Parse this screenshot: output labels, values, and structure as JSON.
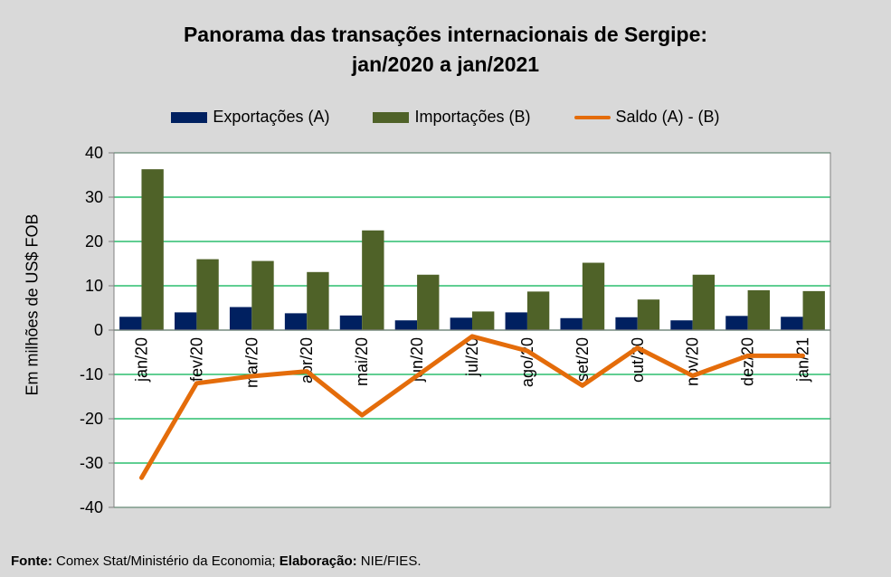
{
  "chart_data": {
    "type": "bar",
    "title_line1": "Panorama  das transações internacionais de Sergipe:",
    "title_line2": "jan/2020 a jan/2021",
    "ylabel": "Em milhões de US$ FOB",
    "ylim": [
      -40,
      40
    ],
    "yticks": [
      40,
      30,
      20,
      10,
      0,
      -10,
      -20,
      -30,
      -40
    ],
    "categories": [
      "jan/20",
      "fev/20",
      "mar/20",
      "abr/20",
      "mai/20",
      "jun/20",
      "jul/20",
      "ago/20",
      "set/20",
      "out/20",
      "nov/20",
      "dez/20",
      "jan/21"
    ],
    "series": [
      {
        "name": "Exportações (A)",
        "kind": "bar",
        "color": "#002060",
        "values": [
          3.0,
          4.0,
          5.2,
          3.8,
          3.3,
          2.2,
          2.8,
          4.0,
          2.7,
          2.9,
          2.2,
          3.2,
          3.0
        ]
      },
      {
        "name": "Importações (B)",
        "kind": "bar",
        "color": "#4f6228",
        "values": [
          36.3,
          16.0,
          15.6,
          13.1,
          22.5,
          12.5,
          4.2,
          8.7,
          15.2,
          6.9,
          12.5,
          9.0,
          8.8
        ]
      },
      {
        "name": "Saldo (A) - (B)",
        "kind": "line",
        "color": "#e46c0a",
        "values": [
          -33.3,
          -12.0,
          -10.4,
          -9.3,
          -19.2,
          -10.3,
          -1.4,
          -4.7,
          -12.5,
          -4.0,
          -10.3,
          -5.8,
          -5.8
        ]
      }
    ],
    "grid": true,
    "legend_position": "top"
  },
  "footer": {
    "source_label": "Fonte:",
    "source_text": " Comex Stat/Ministério da Economia; ",
    "credit_label": "Elaboração:",
    "credit_text": " NIE/FIES."
  }
}
